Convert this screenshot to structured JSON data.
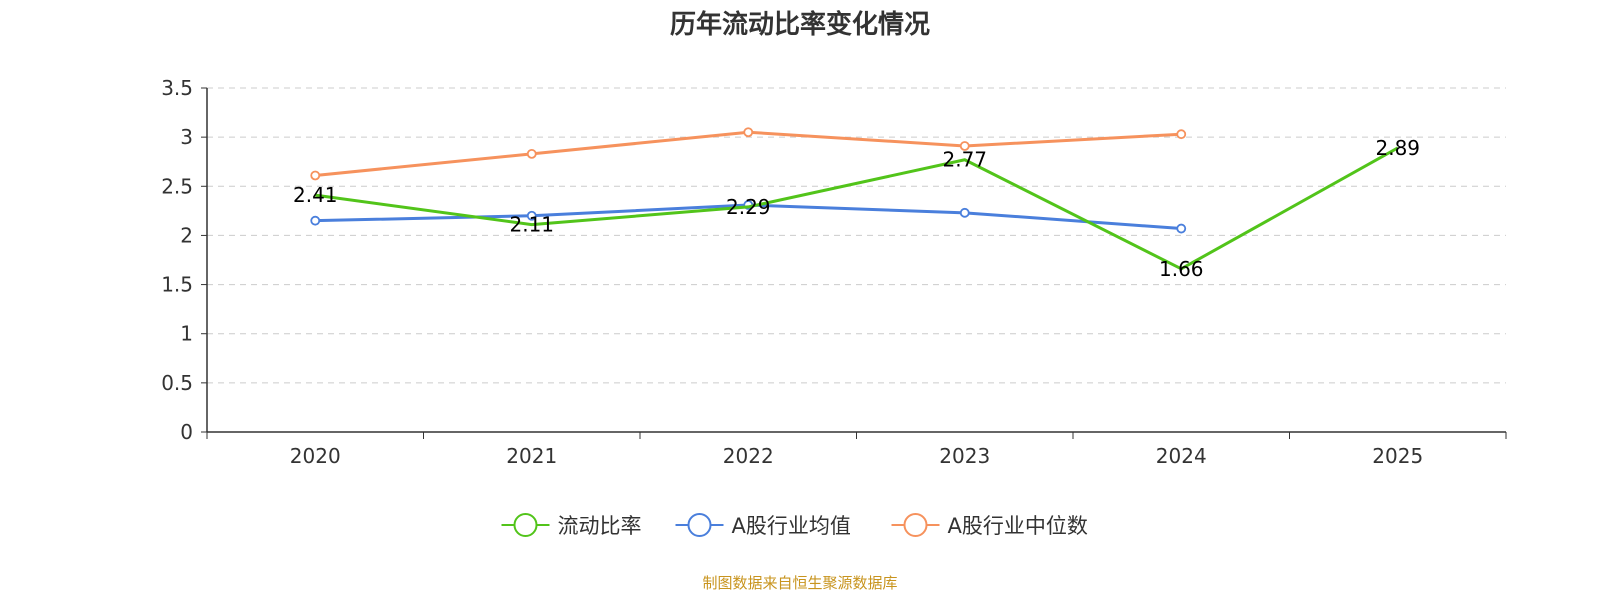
{
  "chart_data": {
    "type": "line",
    "title": "历年流动比率变化情况",
    "categories": [
      "2020",
      "2021",
      "2022",
      "2023",
      "2024",
      "2025"
    ],
    "ylim": [
      0,
      3.5
    ],
    "yticks": [
      "0",
      "0.5",
      "1",
      "1.5",
      "2",
      "2.5",
      "3",
      "3.5"
    ],
    "grid": true,
    "legend_position": "bottom-center",
    "series": [
      {
        "name": "流动比率",
        "color": "#52c41a",
        "values": [
          2.41,
          2.11,
          2.29,
          2.77,
          1.66,
          2.89
        ],
        "labels": [
          "2.41",
          "2.11",
          "2.29",
          "2.77",
          "1.66",
          "2.89"
        ],
        "show_labels": true
      },
      {
        "name": "A股行业均值",
        "color": "#4a7fdc",
        "values": [
          2.15,
          2.2,
          2.31,
          2.23,
          2.07,
          null
        ],
        "show_labels": false
      },
      {
        "name": "A股行业中位数",
        "color": "#f6925d",
        "values": [
          2.61,
          2.83,
          3.05,
          2.91,
          3.03,
          null
        ],
        "show_labels": false
      }
    ]
  },
  "source_text": "制图数据来自恒生聚源数据库",
  "source_color": "#c8941e"
}
